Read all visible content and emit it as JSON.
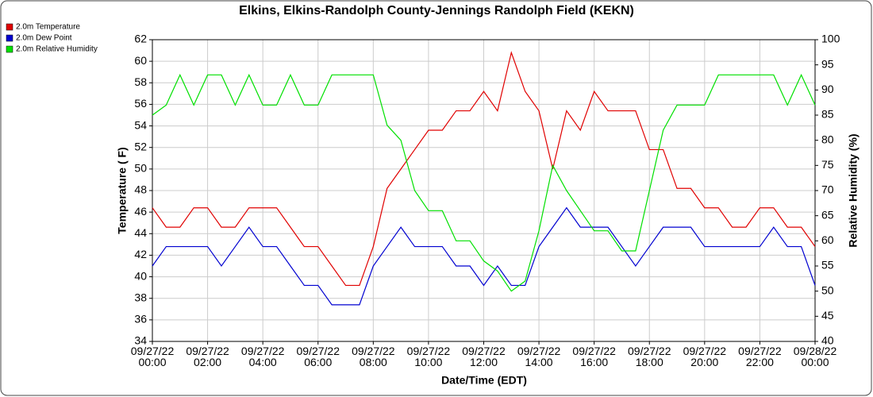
{
  "chart_data": {
    "type": "line",
    "title": "Elkins, Elkins-Randolph County-Jennings Randolph Field (KEKN)",
    "x_label": "Date/Time (EDT)",
    "y_label": "Temperature ( F)",
    "y2_label": "Relative Humidity (%)",
    "x": [
      "2022-09-27T00:00",
      "2022-09-27T00:30",
      "2022-09-27T01:00",
      "2022-09-27T01:30",
      "2022-09-27T02:00",
      "2022-09-27T02:30",
      "2022-09-27T03:00",
      "2022-09-27T03:30",
      "2022-09-27T04:00",
      "2022-09-27T04:30",
      "2022-09-27T05:00",
      "2022-09-27T05:30",
      "2022-09-27T06:00",
      "2022-09-27T06:30",
      "2022-09-27T07:00",
      "2022-09-27T07:30",
      "2022-09-27T08:00",
      "2022-09-27T08:30",
      "2022-09-27T09:00",
      "2022-09-27T09:30",
      "2022-09-27T10:00",
      "2022-09-27T10:30",
      "2022-09-27T11:00",
      "2022-09-27T11:30",
      "2022-09-27T12:00",
      "2022-09-27T12:30",
      "2022-09-27T13:00",
      "2022-09-27T13:30",
      "2022-09-27T14:00",
      "2022-09-27T14:30",
      "2022-09-27T15:00",
      "2022-09-27T15:30",
      "2022-09-27T16:00",
      "2022-09-27T16:30",
      "2022-09-27T17:00",
      "2022-09-27T17:30",
      "2022-09-27T18:00",
      "2022-09-27T18:30",
      "2022-09-27T19:00",
      "2022-09-27T19:30",
      "2022-09-27T20:00",
      "2022-09-27T20:30",
      "2022-09-27T21:00",
      "2022-09-27T21:30",
      "2022-09-27T22:00",
      "2022-09-27T22:30",
      "2022-09-27T23:00",
      "2022-09-27T23:30",
      "2022-09-28T00:00"
    ],
    "series": [
      {
        "name": "2.0m Temperature",
        "color": "#e00000",
        "values": [
          46.4,
          44.6,
          44.6,
          46.4,
          46.4,
          44.6,
          44.6,
          46.4,
          46.4,
          46.4,
          44.6,
          42.8,
          42.8,
          41,
          39.2,
          39.2,
          42.8,
          48.2,
          50,
          51.8,
          53.6,
          53.6,
          55.4,
          55.4,
          57.2,
          55.4,
          60.8,
          57.2,
          55.4,
          50,
          55.4,
          53.6,
          57.2,
          55.4,
          55.4,
          55.4,
          51.8,
          51.8,
          48.2,
          48.2,
          46.4,
          46.4,
          44.6,
          44.6,
          46.4,
          46.4,
          44.6,
          44.6,
          42.8
        ]
      },
      {
        "name": "2.0m Dew Point",
        "color": "#0000d0",
        "values": [
          41,
          42.8,
          42.8,
          42.8,
          42.8,
          41,
          42.8,
          44.6,
          42.8,
          42.8,
          41,
          39.2,
          39.2,
          37.4,
          37.4,
          37.4,
          41,
          42.8,
          44.6,
          42.8,
          42.8,
          42.8,
          41,
          41,
          39.2,
          41,
          39.2,
          39.2,
          42.8,
          44.6,
          46.4,
          44.6,
          44.6,
          44.6,
          42.8,
          41,
          42.8,
          44.6,
          44.6,
          44.6,
          42.8,
          42.8,
          42.8,
          42.8,
          42.8,
          44.6,
          42.8,
          42.8,
          39.2
        ]
      },
      {
        "name": "2.0m Relative Humidity",
        "color": "#00e000",
        "axis": "y2",
        "values": [
          85,
          87,
          93,
          87,
          93,
          93,
          87,
          93,
          87,
          87,
          93,
          87,
          87,
          93,
          93,
          93,
          93,
          83,
          80,
          70,
          66,
          66,
          60,
          60,
          56,
          54,
          50,
          52,
          62,
          75,
          70,
          66,
          62,
          62,
          58,
          58,
          70,
          82,
          87,
          87,
          87,
          93,
          93,
          93,
          93,
          93,
          87,
          93,
          87
        ]
      }
    ],
    "xlim": [
      "2022-09-27T00:00",
      "2022-09-28T00:00"
    ],
    "xticks": [
      {
        "value": "2022-09-27T00:00",
        "label": "09/27/22\n00:00"
      },
      {
        "value": "2022-09-27T02:00",
        "label": "09/27/22\n02:00"
      },
      {
        "value": "2022-09-27T04:00",
        "label": "09/27/22\n04:00"
      },
      {
        "value": "2022-09-27T06:00",
        "label": "09/27/22\n06:00"
      },
      {
        "value": "2022-09-27T08:00",
        "label": "09/27/22\n08:00"
      },
      {
        "value": "2022-09-27T10:00",
        "label": "09/27/22\n10:00"
      },
      {
        "value": "2022-09-27T12:00",
        "label": "09/27/22\n12:00"
      },
      {
        "value": "2022-09-27T14:00",
        "label": "09/27/22\n14:00"
      },
      {
        "value": "2022-09-27T16:00",
        "label": "09/27/22\n16:00"
      },
      {
        "value": "2022-09-27T18:00",
        "label": "09/27/22\n18:00"
      },
      {
        "value": "2022-09-27T20:00",
        "label": "09/27/22\n20:00"
      },
      {
        "value": "2022-09-27T22:00",
        "label": "09/27/22\n22:00"
      },
      {
        "value": "2022-09-28T00:00",
        "label": "09/28/22\n00:00"
      }
    ],
    "ylim": [
      34,
      62
    ],
    "yticks": [
      34,
      36,
      38,
      40,
      42,
      44,
      46,
      48,
      50,
      52,
      54,
      56,
      58,
      60,
      62
    ],
    "y2lim": [
      40,
      100
    ],
    "y2ticks": [
      40,
      45,
      50,
      55,
      60,
      65,
      70,
      75,
      80,
      85,
      90,
      95,
      100
    ],
    "grid": true,
    "legend": "top-left"
  }
}
